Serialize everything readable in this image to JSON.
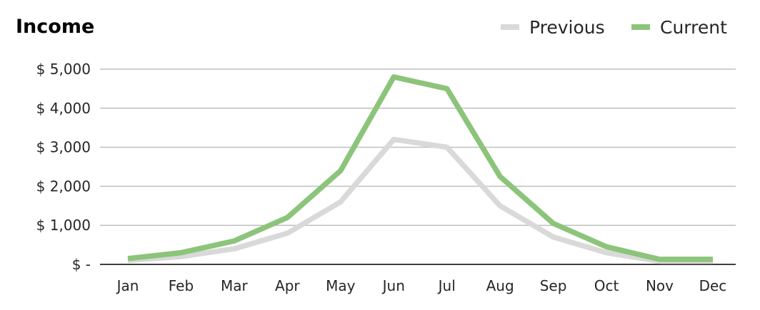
{
  "chart_data": {
    "type": "line",
    "title": "Income",
    "categories": [
      "Jan",
      "Feb",
      "Mar",
      "Apr",
      "May",
      "Jun",
      "Jul",
      "Aug",
      "Sep",
      "Oct",
      "Nov",
      "Dec"
    ],
    "series": [
      {
        "name": "Previous",
        "color": "#d9d9d9",
        "values": [
          100,
          200,
          400,
          800,
          1600,
          3200,
          3000,
          1500,
          700,
          300,
          80,
          80
        ]
      },
      {
        "name": "Current",
        "color": "#8cc47a",
        "values": [
          150,
          300,
          600,
          1200,
          2400,
          4800,
          4500,
          2250,
          1050,
          450,
          130,
          130
        ]
      }
    ],
    "ylim": [
      0,
      5000
    ],
    "y_ticks": [
      0,
      1000,
      2000,
      3000,
      4000,
      5000
    ],
    "y_tick_labels": [
      "$ -",
      "$ 1,000",
      "$ 2,000",
      "$ 3,000",
      "$ 4,000",
      "$ 5,000"
    ],
    "xlabel": "",
    "ylabel": "",
    "grid": true,
    "legend_position": "top-right",
    "gridline_color": "#bfbfbf",
    "axis_color": "#000000"
  }
}
